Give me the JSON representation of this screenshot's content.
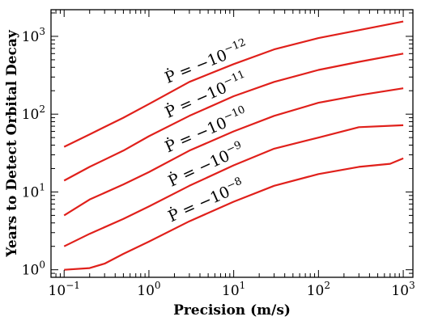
{
  "chart_data": {
    "type": "line",
    "xlabel": "Precision (m/s)",
    "ylabel": "Years to Detect Orbital Decay",
    "x_scale": "log",
    "y_scale": "log",
    "xlim": [
      0.07,
      1300
    ],
    "ylim": [
      0.8,
      2200
    ],
    "x_ticks": [
      {
        "value": 0.1,
        "base": "10",
        "exp": "−1"
      },
      {
        "value": 1,
        "base": "10",
        "exp": "0"
      },
      {
        "value": 10,
        "base": "10",
        "exp": "1"
      },
      {
        "value": 100,
        "base": "10",
        "exp": "2"
      },
      {
        "value": 1000,
        "base": "10",
        "exp": "3"
      }
    ],
    "y_ticks": [
      {
        "value": 1,
        "base": "10",
        "exp": "0"
      },
      {
        "value": 10,
        "base": "10",
        "exp": "1"
      },
      {
        "value": 100,
        "base": "10",
        "exp": "2"
      },
      {
        "value": 1000,
        "base": "10",
        "exp": "3"
      }
    ],
    "grid": false,
    "legend": "none",
    "line_color": "#e0201b",
    "series": [
      {
        "name": "Ṗ = −10^−12",
        "label_prefix": "Ṗ = −10",
        "label_exp": "−12",
        "label_at": 5,
        "points": [
          [
            0.1,
            38
          ],
          [
            0.2,
            55
          ],
          [
            0.5,
            90
          ],
          [
            1,
            135
          ],
          [
            3,
            260
          ],
          [
            10,
            440
          ],
          [
            30,
            680
          ],
          [
            100,
            950
          ],
          [
            300,
            1200
          ],
          [
            1000,
            1550
          ]
        ]
      },
      {
        "name": "Ṗ = −10^−11",
        "label_prefix": "Ṗ = −10",
        "label_exp": "−11",
        "label_at": 5,
        "points": [
          [
            0.1,
            14
          ],
          [
            0.2,
            21
          ],
          [
            0.5,
            34
          ],
          [
            1,
            52
          ],
          [
            3,
            95
          ],
          [
            10,
            170
          ],
          [
            30,
            260
          ],
          [
            100,
            370
          ],
          [
            300,
            470
          ],
          [
            1000,
            600
          ]
        ]
      },
      {
        "name": "Ṗ = −10^−10",
        "label_prefix": "Ṗ = −10",
        "label_exp": "−10",
        "label_at": 5,
        "points": [
          [
            0.1,
            5
          ],
          [
            0.2,
            8
          ],
          [
            0.5,
            12.5
          ],
          [
            1,
            18
          ],
          [
            3,
            34
          ],
          [
            10,
            60
          ],
          [
            30,
            95
          ],
          [
            100,
            140
          ],
          [
            300,
            175
          ],
          [
            1000,
            215
          ]
        ]
      },
      {
        "name": "Ṗ = −10^−9",
        "label_prefix": "Ṗ = −10",
        "label_exp": "−9",
        "label_at": 5,
        "points": [
          [
            0.1,
            2
          ],
          [
            0.2,
            2.9
          ],
          [
            0.5,
            4.5
          ],
          [
            1,
            6.5
          ],
          [
            3,
            12
          ],
          [
            10,
            22
          ],
          [
            30,
            36
          ],
          [
            100,
            50
          ],
          [
            300,
            68
          ],
          [
            1000,
            72
          ]
        ]
      },
      {
        "name": "Ṗ = −10^−8",
        "label_prefix": "Ṗ = −10",
        "label_exp": "−8",
        "label_at": 5,
        "points": [
          [
            0.1,
            1.0
          ],
          [
            0.2,
            1.05
          ],
          [
            0.3,
            1.2
          ],
          [
            0.5,
            1.6
          ],
          [
            1,
            2.3
          ],
          [
            3,
            4.2
          ],
          [
            10,
            7.5
          ],
          [
            30,
            12
          ],
          [
            100,
            17
          ],
          [
            300,
            21
          ],
          [
            700,
            23
          ],
          [
            1000,
            27
          ]
        ]
      }
    ]
  }
}
